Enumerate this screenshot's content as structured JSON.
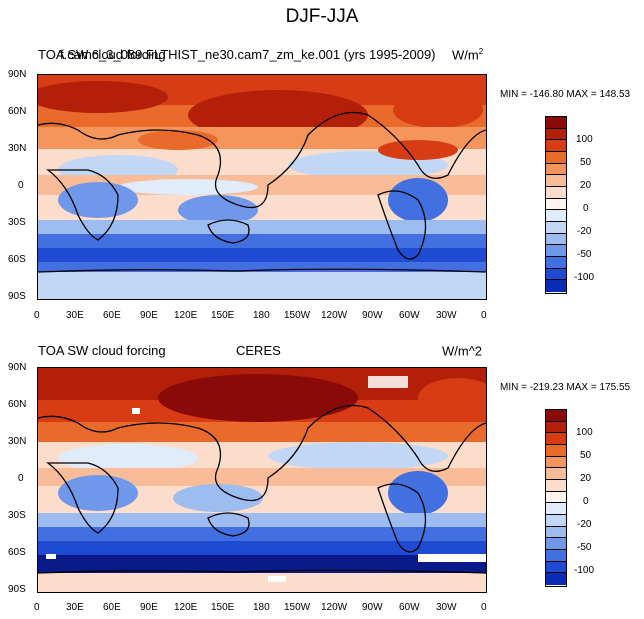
{
  "figure": {
    "title": "DJF-JJA"
  },
  "panels": [
    {
      "left_title": "TOA SW cloud forcing",
      "center_title": "f.cam6_3_089.FLTHIST_ne30.cam7_zm_ke.001 (yrs 1995-2009)",
      "units": "W/m",
      "units_sup": "2",
      "stats": "MIN = -146.80 MAX = 148.53"
    },
    {
      "left_title": "TOA SW cloud forcing",
      "center_title": "CERES",
      "units": "W/m^2",
      "units_sup": "",
      "stats": "MIN = -219.23 MAX = 175.55"
    }
  ],
  "axes": {
    "lat_labels": [
      "90N",
      "60N",
      "30N",
      "0",
      "30S",
      "60S",
      "90S"
    ],
    "lon_labels": [
      "0",
      "30E",
      "60E",
      "90E",
      "120E",
      "150E",
      "180",
      "150W",
      "120W",
      "90W",
      "60W",
      "30W",
      "0"
    ]
  },
  "colorbar": {
    "labels": [
      "100",
      "50",
      "20",
      "0",
      "-20",
      "-50",
      "-100"
    ],
    "colors": [
      "#8a0a0a",
      "#b41f0a",
      "#d83c14",
      "#ea6a2c",
      "#f4965c",
      "#f8bd98",
      "#fcdcca",
      "#fff5ee",
      "#e1ecfa",
      "#c2d7f5",
      "#9dbcf0",
      "#6f98ea",
      "#4270e0",
      "#1f4ad2",
      "#0a2cb6",
      "#0a1a8a"
    ]
  },
  "chart_data": {
    "type": "heatmap",
    "title": "DJF-JJA",
    "x_ticks": [
      "0",
      "30E",
      "60E",
      "90E",
      "120E",
      "150E",
      "180",
      "150W",
      "120W",
      "90W",
      "60W",
      "30W",
      "0"
    ],
    "y_ticks": [
      "90N",
      "60N",
      "30N",
      "0",
      "30S",
      "60S",
      "90S"
    ],
    "colorbar_levels": [
      100,
      50,
      20,
      0,
      -20,
      -50,
      -100
    ],
    "panels": [
      {
        "name": "f.cam6_3_089.FLTHIST_ne30.cam7_zm_ke.001 (yrs 1995-2009)",
        "min": -146.8,
        "max": 148.53
      },
      {
        "name": "CERES",
        "min": -219.23,
        "max": 175.55
      }
    ]
  }
}
